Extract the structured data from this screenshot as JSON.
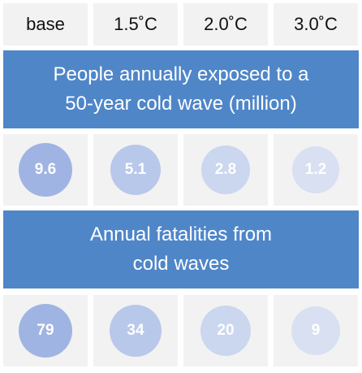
{
  "scenarios": [
    "base",
    "1.5˚C",
    "2.0˚C",
    "3.0˚C"
  ],
  "section1": {
    "title_line1": "People annually exposed to a",
    "title_line2": "50-year cold wave (million)",
    "values": [
      "9.6",
      "5.1",
      "2.8",
      "1.2"
    ]
  },
  "section2": {
    "title_line1": "Annual fatalities from",
    "title_line2": "cold waves",
    "values": [
      "79",
      "34",
      "20",
      "9"
    ]
  },
  "colors": {
    "band": "#4f86c8",
    "cell_background": "#f2f2f2",
    "bubble_shades": [
      "#9fb4e2",
      "#b8c8ea",
      "#cbd6ef",
      "#d8e0f2"
    ]
  }
}
